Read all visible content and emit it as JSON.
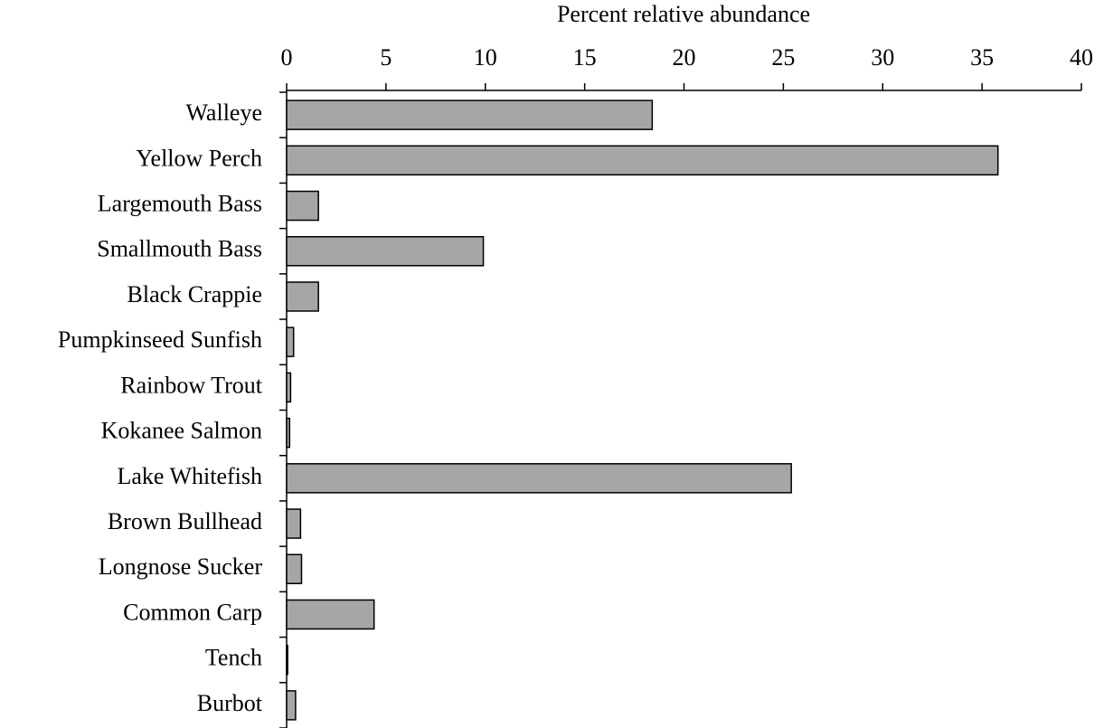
{
  "chart_data": {
    "type": "bar",
    "orientation": "horizontal",
    "x_label": "Percent relative abundance",
    "categories": [
      "Walleye",
      "Yellow Perch",
      "Largemouth Bass",
      "Smallmouth Bass",
      "Black Crappie",
      "Pumpkinseed Sunfish",
      "Rainbow Trout",
      "Kokanee Salmon",
      "Lake Whitefish",
      "Brown Bullhead",
      "Longnose Sucker",
      "Common Carp",
      "Tench",
      "Burbot"
    ],
    "values": [
      18.4,
      35.8,
      1.6,
      9.9,
      1.6,
      0.35,
      0.2,
      0.15,
      25.4,
      0.7,
      0.75,
      4.4,
      0.05,
      0.45
    ],
    "color": "#a6a6a6",
    "xlim": [
      0,
      40
    ],
    "xticks": [
      0,
      5,
      10,
      15,
      20,
      25,
      30,
      35,
      40
    ],
    "grid": false
  }
}
